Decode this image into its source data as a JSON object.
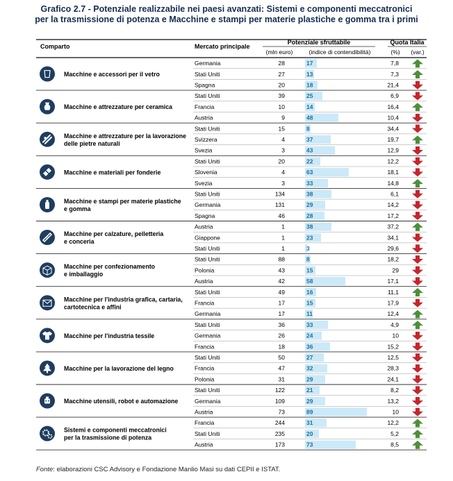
{
  "chart_data": {
    "type": "table",
    "title": "Grafico 2.7 - Potenziale realizzabile nei paesi avanzati: Sistemi e componenti meccatronici per la trasmissione di potenza e Macchine e stampi per materie plastiche e gomma tra i primi",
    "title_line1": "Grafico 2.7 - Potenziale realizzabile nei paesi avanzati: Sistemi e componenti meccatronici",
    "title_line2": "per la trasmissione di potenza e Macchine e stampi per materie plastiche e gomma tra i primi",
    "headers": {
      "comparto": "Comparto",
      "mercato": "Mercato principale",
      "potenziale": "Potenziale sfruttabile",
      "mln": "(mln euro)",
      "indice": "(indice di contendibilità)",
      "quota": "Quota Italia",
      "pct": "(%)",
      "var": "(var.)"
    },
    "index_max": 100,
    "colors": {
      "bar": "#cbe9f8",
      "up": "#4e8f3a",
      "down": "#c4262e",
      "title": "#152d52",
      "icon": "#1f3d5f",
      "rule": "#333333"
    },
    "groups": [
      {
        "label": [
          "Macchine e accessori per il vetro"
        ],
        "icon": "glass-icon",
        "rows": [
          {
            "market": "Germania",
            "mln": "28",
            "index": 17,
            "quota": "7,8",
            "var": "up"
          },
          {
            "market": "Stati Uniti",
            "mln": "27",
            "index": 13,
            "quota": "7,3",
            "var": "up"
          },
          {
            "market": "Spagna",
            "mln": "20",
            "index": 18,
            "quota": "21,4",
            "var": "down"
          }
        ]
      },
      {
        "label": [
          "Macchine e attrezzature per ceramica"
        ],
        "icon": "vase-icon",
        "rows": [
          {
            "market": "Stati Uniti",
            "mln": "39",
            "index": 25,
            "quota": "6,9",
            "var": "down"
          },
          {
            "market": "Francia",
            "mln": "10",
            "index": 14,
            "quota": "16,4",
            "var": "up"
          },
          {
            "market": "Austria",
            "mln": "9",
            "index": 48,
            "quota": "10,4",
            "var": "down"
          }
        ]
      },
      {
        "label": [
          "Macchine e attrezzature per la lavorazione",
          "delle pietre naturali"
        ],
        "icon": "stone-icon",
        "rows": [
          {
            "market": "Stati Uniti",
            "mln": "15",
            "index": 8,
            "quota": "34,4",
            "var": "down"
          },
          {
            "market": "Svizzera",
            "mln": "4",
            "index": 37,
            "quota": "19,7",
            "var": "up"
          },
          {
            "market": "Svezia",
            "mln": "3",
            "index": 43,
            "quota": "12,9",
            "var": "down"
          }
        ]
      },
      {
        "label": [
          "Macchine e materiali per fonderie"
        ],
        "icon": "foundry-icon",
        "rows": [
          {
            "market": "Stati Uniti",
            "mln": "20",
            "index": 22,
            "quota": "12,2",
            "var": "down"
          },
          {
            "market": "Slovenia",
            "mln": "4",
            "index": 63,
            "quota": "18,1",
            "var": "down"
          },
          {
            "market": "Svezia",
            "mln": "3",
            "index": 33,
            "quota": "14,8",
            "var": "up"
          }
        ]
      },
      {
        "label": [
          "Macchine e stampi per materie plastiche",
          "e gomma"
        ],
        "icon": "bottle-icon",
        "rows": [
          {
            "market": "Stati Uniti",
            "mln": "134",
            "index": 38,
            "quota": "6,1",
            "var": "down"
          },
          {
            "market": "Germania",
            "mln": "131",
            "index": 29,
            "quota": "14,2",
            "var": "down"
          },
          {
            "market": "Spagna",
            "mln": "46",
            "index": 28,
            "quota": "17,2",
            "var": "down"
          }
        ]
      },
      {
        "label": [
          "Macchine per calzature, pelletteria",
          "e conceria"
        ],
        "icon": "shoe-icon",
        "rows": [
          {
            "market": "Austria",
            "mln": "1",
            "index": 38,
            "quota": "37,2",
            "var": "up"
          },
          {
            "market": "Giappone",
            "mln": "1",
            "index": 23,
            "quota": "34,1",
            "var": "down"
          },
          {
            "market": "Stati Uniti",
            "mln": "1",
            "index": 3,
            "quota": "29,6",
            "var": "down"
          }
        ]
      },
      {
        "label": [
          "Macchine per confezionamento",
          "e imballaggio"
        ],
        "icon": "box-icon",
        "rows": [
          {
            "market": "Stati Uniti",
            "mln": "88",
            "index": 8,
            "quota": "18,2",
            "var": "down"
          },
          {
            "market": "Polonia",
            "mln": "43",
            "index": 15,
            "quota": "29",
            "var": "down"
          },
          {
            "market": "Austria",
            "mln": "42",
            "index": 58,
            "quota": "17,1",
            "var": "down"
          }
        ]
      },
      {
        "label": [
          "Macchine per l'industria grafica, cartaria,",
          "cartotecnica e affini"
        ],
        "icon": "print-icon",
        "rows": [
          {
            "market": "Stati Uniti",
            "mln": "49",
            "index": 16,
            "quota": "11,1",
            "var": "up"
          },
          {
            "market": "Francia",
            "mln": "17",
            "index": 15,
            "quota": "17,9",
            "var": "down"
          },
          {
            "market": "Germania",
            "mln": "17",
            "index": 11,
            "quota": "12,4",
            "var": "up"
          }
        ]
      },
      {
        "label": [
          "Macchine per l'industria tessile"
        ],
        "icon": "shirt-icon",
        "rows": [
          {
            "market": "Stati Uniti",
            "mln": "36",
            "index": 33,
            "quota": "4,9",
            "var": "up"
          },
          {
            "market": "Germania",
            "mln": "26",
            "index": 24,
            "quota": "10",
            "var": "down"
          },
          {
            "market": "Francia",
            "mln": "18",
            "index": 36,
            "quota": "15,2",
            "var": "down"
          }
        ]
      },
      {
        "label": [
          "Macchine per la lavorazione del legno"
        ],
        "icon": "tree-icon",
        "rows": [
          {
            "market": "Stati Uniti",
            "mln": "50",
            "index": 27,
            "quota": "12,5",
            "var": "down"
          },
          {
            "market": "Francia",
            "mln": "47",
            "index": 32,
            "quota": "28,3",
            "var": "down"
          },
          {
            "market": "Polonia",
            "mln": "31",
            "index": 29,
            "quota": "24,1",
            "var": "down"
          }
        ]
      },
      {
        "label": [
          "Macchine utensili, robot e automazione"
        ],
        "icon": "robot-icon",
        "rows": [
          {
            "market": "Stati Uniti",
            "mln": "122",
            "index": 21,
            "quota": "8,2",
            "var": "down"
          },
          {
            "market": "Germania",
            "mln": "109",
            "index": 29,
            "quota": "13,2",
            "var": "down"
          },
          {
            "market": "Austria",
            "mln": "73",
            "index": 89,
            "quota": "10",
            "var": "down"
          }
        ]
      },
      {
        "label": [
          "Sistemi e componenti meccatronici",
          "per la trasmissione di potenza"
        ],
        "icon": "gears-icon",
        "rows": [
          {
            "market": "Francia",
            "mln": "244",
            "index": 31,
            "quota": "12,2",
            "var": "up"
          },
          {
            "market": "Stati Uniti",
            "mln": "235",
            "index": 20,
            "quota": "5,2",
            "var": "up"
          },
          {
            "market": "Austria",
            "mln": "173",
            "index": 73,
            "quota": "8,5",
            "var": "up"
          }
        ]
      }
    ]
  },
  "source": {
    "label": "Fonte",
    "text": ": elaborazioni CSC Advisory e Fondazione Manlio Masi su dati CEPII e ISTAT."
  }
}
